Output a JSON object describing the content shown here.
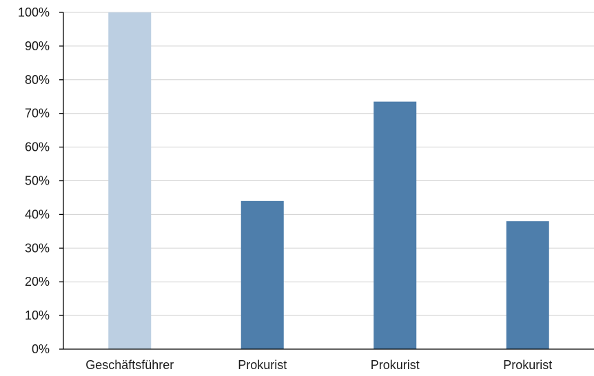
{
  "chart_data": {
    "type": "bar",
    "title": "",
    "xlabel": "",
    "ylabel": "",
    "categories": [
      "Geschäftsführer",
      "Prokurist",
      "Prokurist",
      "Prokurist"
    ],
    "values": [
      100,
      44,
      73.5,
      38
    ],
    "value_unit": "%",
    "ylim": [
      0,
      100
    ],
    "yticks": [
      0,
      10,
      20,
      30,
      40,
      50,
      60,
      70,
      80,
      90,
      100
    ],
    "ytick_labels": [
      "0%",
      "10%",
      "20%",
      "30%",
      "40%",
      "50%",
      "60%",
      "70%",
      "80%",
      "90%",
      "100%"
    ],
    "grid": true,
    "legend": "none",
    "colors": {
      "highlight": "#bccfe2",
      "default": "#4e7eab",
      "gridline": "#d0d0d0",
      "axis": "#000000"
    },
    "bar_color_keys": [
      "highlight",
      "default",
      "default",
      "default"
    ]
  }
}
